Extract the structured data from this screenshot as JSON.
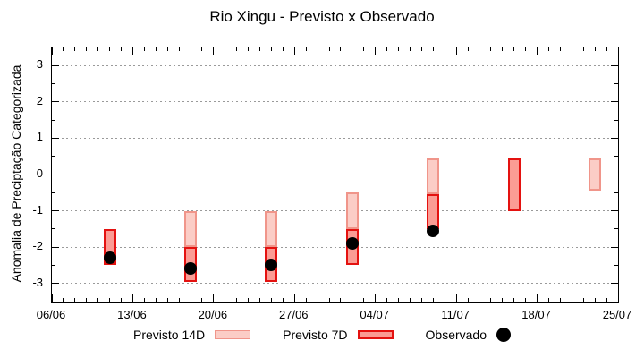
{
  "chart_data": {
    "type": "bar",
    "title": "Rio Xingu - Previsto x Observado",
    "xlabel": "",
    "ylabel": "Anomalia de Preciptação Categorizada",
    "ylim": [
      -3.5,
      3.5
    ],
    "y_major_ticks": [
      3,
      2,
      1,
      0,
      -1,
      -2,
      -3
    ],
    "y_minor_step": 0.5,
    "x_tick_labels": [
      "06/06",
      "13/06",
      "20/06",
      "27/06",
      "04/07",
      "11/07",
      "18/07",
      "25/07"
    ],
    "x_tick_days": [
      0,
      7,
      14,
      21,
      28,
      35,
      42,
      49
    ],
    "x_total_days": 49,
    "grid": "horizontal dotted at integer y values",
    "legend_position": "bottom",
    "colors": {
      "previsto_14d_fill": "#fbcdc6",
      "previsto_14d_border": "#f0958a",
      "previsto_7d_fill": "#fb9c94",
      "previsto_7d_border": "#e41210",
      "observado": "#000000",
      "grid": "#9a9a9a"
    },
    "series": [
      {
        "name": "Previsto 14D",
        "type": "range-bar",
        "fill": "#fbcdc6",
        "border": "#f0958a",
        "points": [
          {
            "date": "18/06",
            "day": 12,
            "high": -1.0,
            "low": -2.0
          },
          {
            "date": "25/06",
            "day": 19,
            "high": -1.0,
            "low": -2.0
          },
          {
            "date": "02/07",
            "day": 26,
            "high": -0.5,
            "low": -1.5
          },
          {
            "date": "09/07",
            "day": 33,
            "high": 0.45,
            "low": -0.55
          },
          {
            "date": "23/07",
            "day": 47,
            "high": 0.45,
            "low": -0.45
          }
        ]
      },
      {
        "name": "Previsto 7D",
        "type": "range-bar",
        "fill": "#fb9c94",
        "border": "#e41210",
        "points": [
          {
            "date": "11/06",
            "day": 5,
            "high": -1.5,
            "low": -2.5
          },
          {
            "date": "18/06",
            "day": 12,
            "high": -2.0,
            "low": -2.95
          },
          {
            "date": "25/06",
            "day": 19,
            "high": -2.0,
            "low": -2.95
          },
          {
            "date": "02/07",
            "day": 26,
            "high": -1.5,
            "low": -2.5
          },
          {
            "date": "09/07",
            "day": 33,
            "high": -0.55,
            "low": -1.5
          },
          {
            "date": "16/07",
            "day": 40,
            "high": 0.45,
            "low": -1.0
          }
        ]
      },
      {
        "name": "Observado",
        "type": "scatter",
        "color": "#000000",
        "points": [
          {
            "date": "11/06",
            "day": 5,
            "value": -2.3
          },
          {
            "date": "18/06",
            "day": 12,
            "value": -2.6
          },
          {
            "date": "25/06",
            "day": 19,
            "value": -2.5
          },
          {
            "date": "02/07",
            "day": 26,
            "value": -1.9
          },
          {
            "date": "09/07",
            "day": 33,
            "value": -1.55
          }
        ]
      }
    ]
  }
}
